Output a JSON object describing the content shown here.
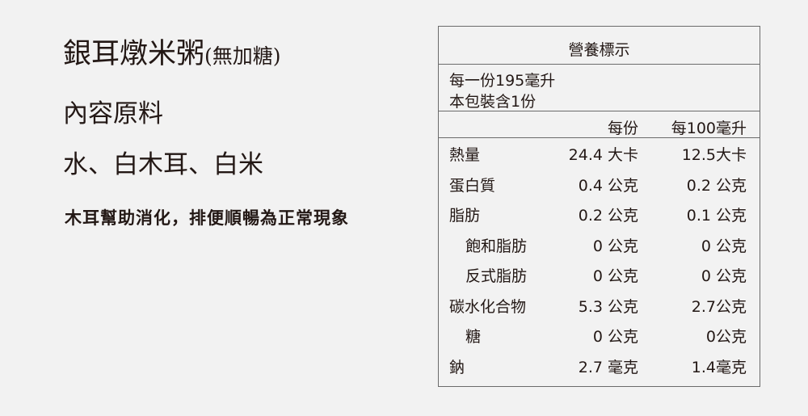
{
  "product": {
    "name": "銀耳燉米粥",
    "variant": "(無加糖)"
  },
  "ingredients": {
    "heading": "內容原料",
    "list": "水、白木耳、白米"
  },
  "note": "木耳幫助消化，排便順暢為正常現象",
  "nutrition": {
    "title": "營養標示",
    "serving_size": "每一份195毫升",
    "servings": "本包裝含1份",
    "col_per_serving": "每份",
    "col_per_100": "每100毫升",
    "rows": [
      {
        "label": "熱量",
        "per_serving": "24.4 大卡",
        "per_100": "12.5大卡",
        "indent": false
      },
      {
        "label": "蛋白質",
        "per_serving": "0.4 公克",
        "per_100": "0.2 公克",
        "indent": false
      },
      {
        "label": "脂肪",
        "per_serving": "0.2 公克",
        "per_100": "0.1 公克",
        "indent": false
      },
      {
        "label": "飽和脂肪",
        "per_serving": "0 公克",
        "per_100": "0 公克",
        "indent": true
      },
      {
        "label": "反式脂肪",
        "per_serving": "0 公克",
        "per_100": "0 公克",
        "indent": true
      },
      {
        "label": "碳水化合物",
        "per_serving": "5.3 公克",
        "per_100": "2.7公克",
        "indent": false
      },
      {
        "label": "糖",
        "per_serving": "0 公克",
        "per_100": "0公克",
        "indent": true
      },
      {
        "label": "鈉",
        "per_serving": "2.7 毫克",
        "per_100": "1.4毫克",
        "indent": false
      }
    ]
  }
}
